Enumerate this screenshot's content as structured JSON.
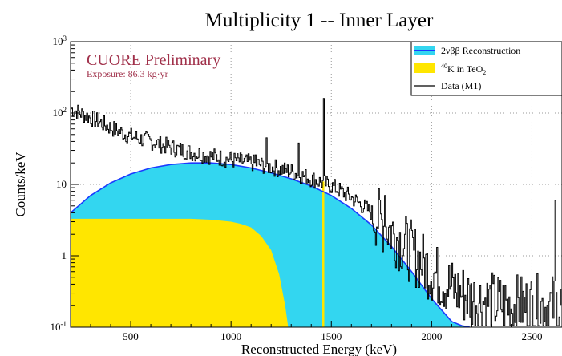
{
  "chart_data": {
    "type": "area",
    "title": "Multiplicity 1 -- Inner Layer",
    "xlabel": "Reconstructed Energy (keV)",
    "ylabel": "Counts/keV",
    "xlim": [
      200,
      2650
    ],
    "ylim": [
      0.1,
      1000
    ],
    "yscale": "log",
    "grid": true,
    "legend_position": "top-right",
    "x_ticks": [
      500,
      1000,
      1500,
      2000,
      2500
    ],
    "y_ticks": [
      {
        "value": 0.1,
        "base": "10",
        "exp": "-1"
      },
      {
        "value": 1,
        "base": "1",
        "exp": ""
      },
      {
        "value": 10,
        "base": "10",
        "exp": ""
      },
      {
        "value": 100,
        "base": "10",
        "exp": "2"
      },
      {
        "value": 1000,
        "base": "10",
        "exp": "3"
      }
    ],
    "annotations": {
      "preliminary": "CUORE Preliminary",
      "exposure": "Exposure: 86.3 kg·yr"
    },
    "legend": [
      {
        "label": "2νββ Reconstruction",
        "fill": "#33d6f0",
        "line": "#1a3cff"
      },
      {
        "label_sup": "40",
        "label_main": "K in TeO",
        "label_sub": "2",
        "fill": "#ffe600"
      },
      {
        "label": "Data (M1)",
        "line": "#000000"
      }
    ],
    "series": [
      {
        "name": "2νββ Reconstruction",
        "kind": "area",
        "x": [
          200,
          300,
          400,
          500,
          600,
          700,
          800,
          900,
          1000,
          1100,
          1200,
          1300,
          1400,
          1500,
          1600,
          1700,
          1800,
          1900,
          2000,
          2100,
          2150,
          2190
        ],
        "y": [
          4.0,
          7.0,
          10.5,
          14.0,
          17.0,
          19.0,
          20.0,
          20.0,
          19.0,
          17.0,
          14.5,
          12.0,
          9.5,
          7.0,
          4.6,
          2.7,
          1.35,
          0.6,
          0.25,
          0.12,
          0.105,
          0.1
        ]
      },
      {
        "name": "40K in TeO2",
        "kind": "area",
        "x": [
          200,
          400,
          600,
          800,
          900,
          1000,
          1050,
          1100,
          1150,
          1200,
          1240,
          1270,
          1285
        ],
        "y": [
          3.3,
          3.3,
          3.3,
          3.3,
          3.2,
          3.0,
          2.8,
          2.5,
          1.9,
          1.2,
          0.55,
          0.2,
          0.1
        ]
      },
      {
        "name": "40K line",
        "kind": "line",
        "x": [
          1455,
          1465
        ],
        "y": [
          11.0,
          11.0
        ]
      },
      {
        "name": "Data (M1)",
        "kind": "line",
        "x": [
          200,
          300,
          400,
          500,
          600,
          700,
          800,
          900,
          1000,
          1100,
          1200,
          1300,
          1400,
          1500,
          1600,
          1700,
          1800,
          1900,
          2000,
          2100,
          2200,
          2300,
          2400,
          2500,
          2600,
          2650
        ],
        "y": [
          115,
          85,
          62,
          47,
          40,
          33,
          28,
          25,
          22,
          20,
          17.5,
          15,
          12,
          9.5,
          6.5,
          4.0,
          2.2,
          1.1,
          0.6,
          0.35,
          0.25,
          0.22,
          0.2,
          0.2,
          0.2,
          0.2
        ],
        "peaks": [
          {
            "x": 1173,
            "y": 45
          },
          {
            "x": 1333,
            "y": 38
          },
          {
            "x": 1461,
            "y": 160
          },
          {
            "x": 1120,
            "y": 26
          },
          {
            "x": 1765,
            "y": 7
          },
          {
            "x": 2615,
            "y": 6
          }
        ]
      }
    ]
  }
}
